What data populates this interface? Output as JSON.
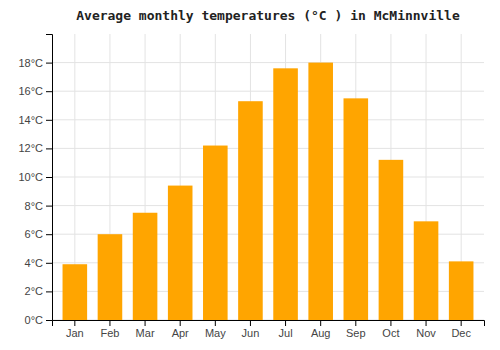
{
  "chart_data": {
    "type": "bar",
    "title": "Average monthly temperatures (°C ) in McMinnville",
    "categories": [
      "Jan",
      "Feb",
      "Mar",
      "Apr",
      "May",
      "Jun",
      "Jul",
      "Aug",
      "Sep",
      "Oct",
      "Nov",
      "Dec"
    ],
    "values": [
      3.9,
      6.0,
      7.5,
      9.4,
      12.2,
      15.3,
      17.6,
      18.0,
      15.5,
      11.2,
      6.9,
      4.1
    ],
    "color": "#FFA500",
    "ylim": [
      0,
      20
    ],
    "yticks": [
      {
        "value": 0,
        "label": "0°C"
      },
      {
        "value": 2,
        "label": "2°C"
      },
      {
        "value": 4,
        "label": "4°C"
      },
      {
        "value": 6,
        "label": "6°C"
      },
      {
        "value": 8,
        "label": "8°C"
      },
      {
        "value": 10,
        "label": "10°C"
      },
      {
        "value": 12,
        "label": "12°C"
      },
      {
        "value": 14,
        "label": "14°C"
      },
      {
        "value": 16,
        "label": "16°C"
      },
      {
        "value": 18,
        "label": "18°C"
      }
    ],
    "grid": true
  }
}
